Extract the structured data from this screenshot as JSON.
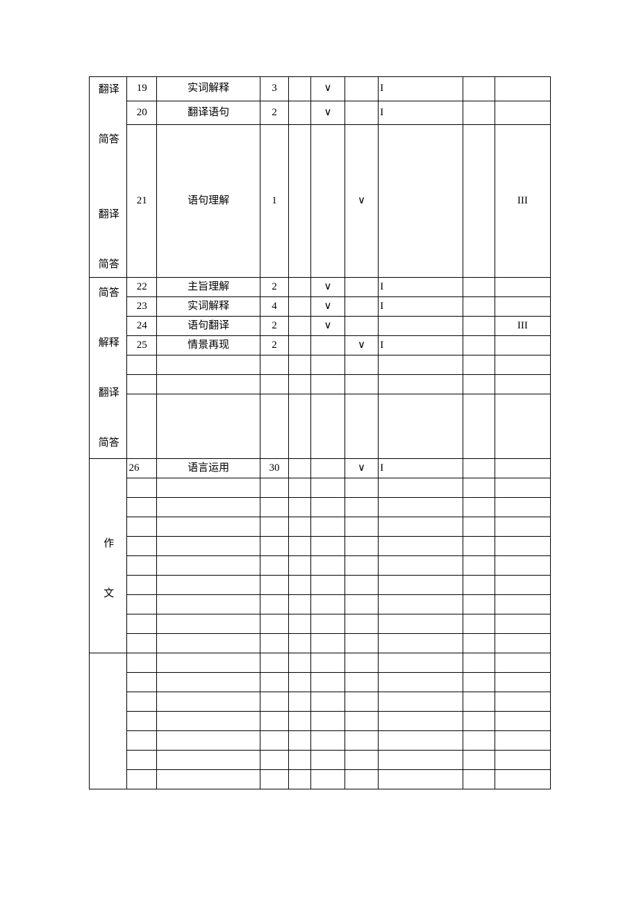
{
  "labels": {
    "g1": "翻译\n简答\n翻译\n简答",
    "g2": "简答\n解释\n翻译\n简答",
    "g3": "作\n文"
  },
  "rows": {
    "r19": {
      "c1": "19",
      "c2": "实词解释",
      "c3": "3",
      "c4": "",
      "c5": "∨",
      "c6": "",
      "c7": "I",
      "c8": "",
      "c9": ""
    },
    "r20": {
      "c1": "20",
      "c2": "翻译语句",
      "c3": "2",
      "c4": "",
      "c5": "∨",
      "c6": "",
      "c7": "I",
      "c8": "",
      "c9": ""
    },
    "r21": {
      "c1": "21",
      "c2": "语句理解",
      "c3": "1",
      "c4": "",
      "c5": "",
      "c6": "∨",
      "c7": "",
      "c8": "",
      "c9": "III"
    },
    "r22": {
      "c1": "22",
      "c2": "主旨理解",
      "c3": "2",
      "c4": "",
      "c5": "∨",
      "c6": "",
      "c7": "I",
      "c8": "",
      "c9": ""
    },
    "r23": {
      "c1": "23",
      "c2": "实词解释",
      "c3": "4",
      "c4": "",
      "c5": "∨",
      "c6": "",
      "c7": "I",
      "c8": "",
      "c9": ""
    },
    "r24": {
      "c1": "24",
      "c2": "语句翻译",
      "c3": "2",
      "c4": "",
      "c5": "∨",
      "c6": "",
      "c7": "",
      "c8": "",
      "c9": "III"
    },
    "r25": {
      "c1": "25",
      "c2": "情景再现",
      "c3": "2",
      "c4": "",
      "c5": "",
      "c6": "∨",
      "c7": "I",
      "c8": "",
      "c9": ""
    },
    "r26": {
      "c1": "26",
      "c2": "语言运用",
      "c3": "30",
      "c4": "",
      "c5": "",
      "c6": "∨",
      "c7": "I",
      "c8": "",
      "c9": ""
    }
  }
}
